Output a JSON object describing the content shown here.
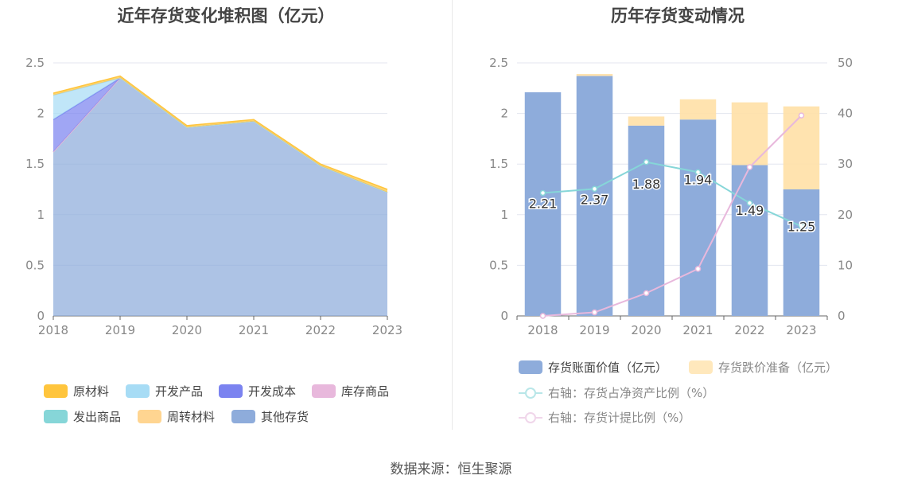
{
  "left_chart": {
    "title": "近年存货变化堆积图（亿元）",
    "legend": [
      "原材料",
      "开发产品",
      "开发成本",
      "库存商品",
      "发出商品",
      "周转材料",
      "其他存货"
    ]
  },
  "right_chart": {
    "title": "历年存货变动情况",
    "legend": [
      "存货账面价值（亿元）",
      "存货跌价准备（亿元）",
      "右轴：存货占净资产比例（%）",
      "右轴：存货计提比例（%）"
    ]
  },
  "source": "数据来源：恒生聚源",
  "colors": {
    "原材料": "#ffc53d",
    "开发产品": "#a7dcf5",
    "开发成本": "#7b83f0",
    "库存商品": "#e8b8dc",
    "发出商品": "#86d6d8",
    "周转材料": "#ffd591",
    "其他存货": "#8eacdb",
    "book_value": "#8eacdb",
    "provision": "#ffe0a6",
    "ratio_net_assets": "#86d6d8",
    "ratio_provision": "#e8b8dc"
  },
  "chart_data": [
    {
      "type": "area",
      "stacked": true,
      "x": [
        "2018",
        "2019",
        "2020",
        "2021",
        "2022",
        "2023"
      ],
      "ylim": [
        0,
        2.5
      ],
      "yticks": [
        "0",
        "0.5",
        "1",
        "1.5",
        "2",
        "2.5"
      ],
      "series": [
        {
          "name": "其他存货",
          "values": [
            1.62,
            2.35,
            1.86,
            1.92,
            1.48,
            1.22
          ]
        },
        {
          "name": "周转材料",
          "values": [
            0.0,
            0.0,
            0.0,
            0.0,
            0.0,
            0.0
          ]
        },
        {
          "name": "发出商品",
          "values": [
            0.0,
            0.0,
            0.0,
            0.0,
            0.0,
            0.0
          ]
        },
        {
          "name": "库存商品",
          "values": [
            0.0,
            0.0,
            0.0,
            0.0,
            0.0,
            0.0
          ]
        },
        {
          "name": "开发成本",
          "values": [
            0.32,
            0.0,
            0.0,
            0.0,
            0.0,
            0.0
          ]
        },
        {
          "name": "开发产品",
          "values": [
            0.24,
            0.0,
            0.0,
            0.0,
            0.0,
            0.0
          ]
        },
        {
          "name": "原材料",
          "values": [
            0.02,
            0.02,
            0.02,
            0.02,
            0.02,
            0.03
          ]
        }
      ]
    },
    {
      "type": "bar",
      "stacked": true,
      "categories": [
        "2018",
        "2019",
        "2020",
        "2021",
        "2022",
        "2023"
      ],
      "ylim": [
        0,
        2.5
      ],
      "yticks": [
        "0",
        "0.5",
        "1",
        "1.5",
        "2",
        "2.5"
      ],
      "y2lim": [
        0,
        50
      ],
      "y2ticks": [
        "0",
        "10",
        "20",
        "30",
        "40",
        "50"
      ],
      "series": [
        {
          "name": "存货账面价值（亿元）",
          "values": [
            2.21,
            2.37,
            1.88,
            1.94,
            1.49,
            1.25
          ],
          "labels": [
            "2.21",
            "2.37",
            "1.88",
            "1.94",
            "1.49",
            "1.25"
          ]
        },
        {
          "name": "存货跌价准备（亿元）",
          "values": [
            0.0,
            0.02,
            0.09,
            0.2,
            0.62,
            0.82
          ]
        }
      ],
      "lines": [
        {
          "name": "右轴：存货占净资产比例（%）",
          "axis": "right",
          "values": [
            24.3,
            25.1,
            30.4,
            28.4,
            22.3,
            17.7
          ]
        },
        {
          "name": "右轴：存货计提比例（%）",
          "axis": "right",
          "values": [
            0.0,
            0.7,
            4.5,
            9.3,
            29.4,
            39.6
          ]
        }
      ]
    }
  ]
}
